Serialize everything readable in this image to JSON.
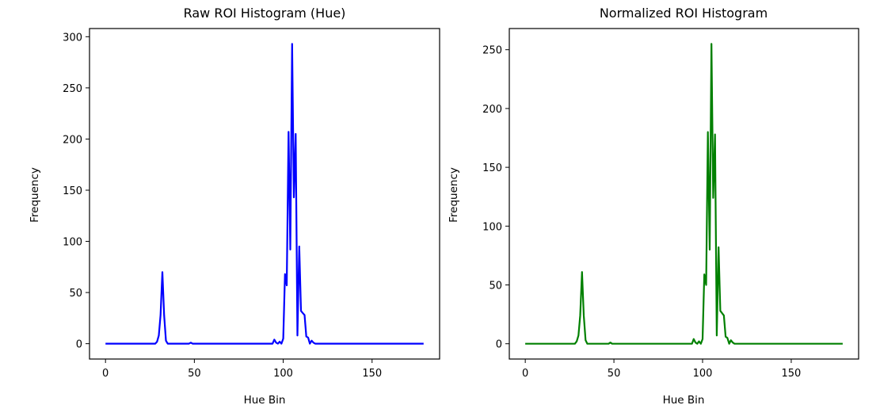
{
  "chart_data": [
    {
      "type": "line",
      "title": "Raw ROI Histogram (Hue)",
      "xlabel": "Hue Bin",
      "ylabel": "Frequency",
      "xlim": [
        -9,
        188
      ],
      "ylim": [
        -15,
        308
      ],
      "xticks": [
        0,
        50,
        100,
        150
      ],
      "yticks": [
        0,
        50,
        100,
        150,
        200,
        250,
        300
      ],
      "grid": false,
      "series": [
        {
          "color": "#0000ff",
          "x": [
            0,
            28,
            29,
            30,
            31,
            32,
            33,
            34,
            35,
            36,
            46,
            47,
            48,
            49,
            93,
            94,
            95,
            96,
            97,
            98,
            99,
            100,
            101,
            102,
            103,
            104,
            105,
            106,
            107,
            108,
            109,
            110,
            111,
            112,
            113,
            114,
            115,
            116,
            117,
            118,
            119,
            179
          ],
          "y": [
            0,
            0,
            2,
            8,
            28,
            70,
            28,
            3,
            0,
            0,
            0,
            0,
            1,
            0,
            0,
            0,
            4,
            1,
            0,
            2,
            0,
            5,
            68,
            57,
            207,
            92,
            293,
            143,
            205,
            8,
            95,
            32,
            30,
            28,
            7,
            6,
            0,
            3,
            1,
            0,
            0,
            0
          ]
        }
      ]
    },
    {
      "type": "line",
      "title": "Normalized ROI Histogram",
      "xlabel": "Hue Bin",
      "ylabel": "Frequency",
      "xlim": [
        -9,
        188
      ],
      "ylim": [
        -13,
        268
      ],
      "xticks": [
        0,
        50,
        100,
        150
      ],
      "yticks": [
        0,
        50,
        100,
        150,
        200,
        250
      ],
      "grid": false,
      "series": [
        {
          "color": "#008000",
          "x": [
            0,
            28,
            29,
            30,
            31,
            32,
            33,
            34,
            35,
            36,
            46,
            47,
            48,
            49,
            93,
            94,
            95,
            96,
            97,
            98,
            99,
            100,
            101,
            102,
            103,
            104,
            105,
            106,
            107,
            108,
            109,
            110,
            111,
            112,
            113,
            114,
            115,
            116,
            117,
            118,
            119,
            179
          ],
          "y": [
            0,
            0,
            2,
            7,
            24,
            61,
            24,
            3,
            0,
            0,
            0,
            0,
            1,
            0,
            0,
            0,
            4,
            1,
            0,
            2,
            0,
            4,
            59,
            50,
            180,
            80,
            255,
            124,
            178,
            7,
            82,
            28,
            26,
            24,
            6,
            5,
            0,
            3,
            1,
            0,
            0,
            0
          ]
        }
      ]
    }
  ]
}
